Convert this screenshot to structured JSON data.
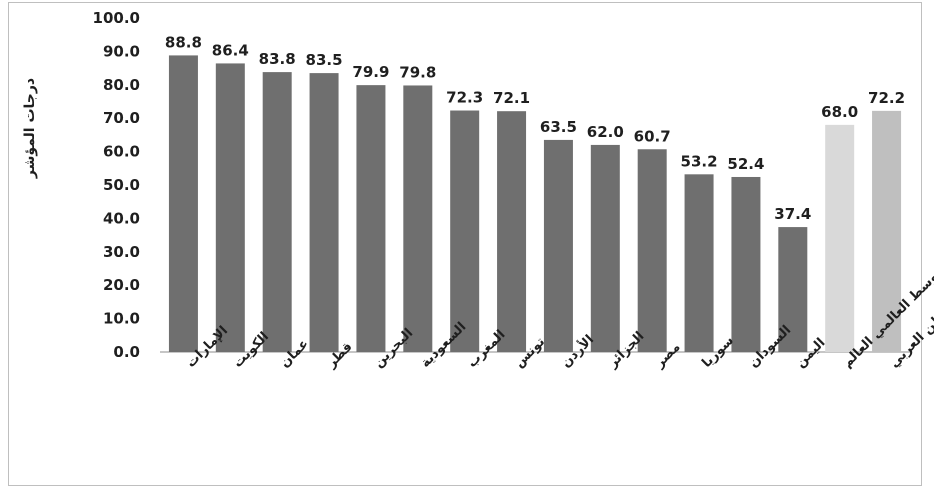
{
  "chart_data": {
    "type": "bar",
    "title": "",
    "xlabel": "",
    "ylabel": "درجات المؤشر",
    "ylim": [
      0,
      100
    ],
    "ytick_step": 10,
    "ytick_labels": [
      "0.0",
      "10.0",
      "20.0",
      "30.0",
      "40.0",
      "50.0",
      "60.0",
      "70.0",
      "80.0",
      "90.0",
      "100.0"
    ],
    "grid": false,
    "legend": "none",
    "categories": [
      "الإمارات",
      "الكويت",
      "عمان",
      "قطر",
      "البحرين",
      "السعودية",
      "المغرب",
      "تونس",
      "الأردن",
      "الجزائر",
      "مصر",
      "سوريا",
      "السودان",
      "اليمن",
      "المتوسط العالمي العالم",
      "متوسط الوطن العربي"
    ],
    "values": [
      88.8,
      86.4,
      83.8,
      83.5,
      79.9,
      79.8,
      72.3,
      72.1,
      63.5,
      62.0,
      60.7,
      53.2,
      52.4,
      37.4,
      68.0,
      72.2
    ],
    "value_labels": [
      "88.8",
      "86.4",
      "83.8",
      "83.5",
      "79.9",
      "79.8",
      "72.3",
      "72.1",
      "63.5",
      "62.0",
      "60.7",
      "53.2",
      "52.4",
      "37.4",
      "68.0",
      "72.2"
    ],
    "bar_colors": [
      "#6f6f6f",
      "#6f6f6f",
      "#6f6f6f",
      "#6f6f6f",
      "#6f6f6f",
      "#6f6f6f",
      "#6f6f6f",
      "#6f6f6f",
      "#6f6f6f",
      "#6f6f6f",
      "#6f6f6f",
      "#6f6f6f",
      "#6f6f6f",
      "#6f6f6f",
      "#d9d9d9",
      "#bfbfbf"
    ]
  }
}
